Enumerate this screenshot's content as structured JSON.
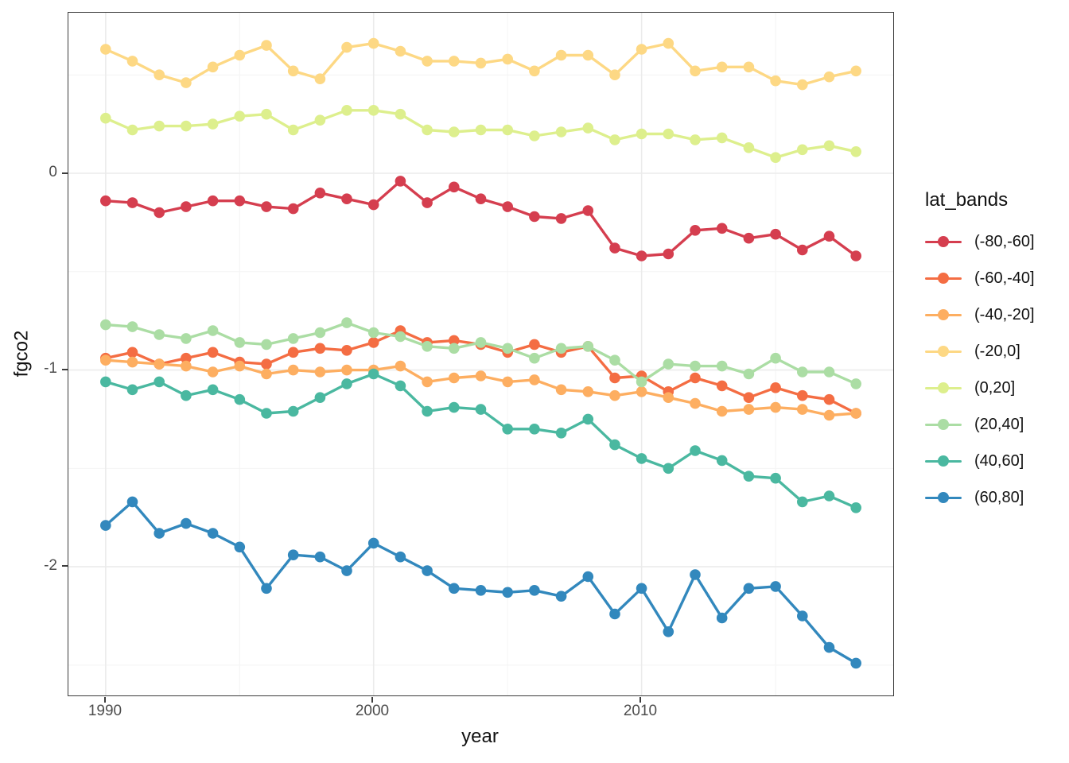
{
  "chart_data": {
    "type": "line",
    "xlabel": "year",
    "ylabel": "fgco2",
    "legend_title": "lat_bands",
    "legend_position": "right",
    "grid": true,
    "marker": "point",
    "x": [
      1990,
      1991,
      1992,
      1993,
      1994,
      1995,
      1996,
      1997,
      1998,
      1999,
      2000,
      2001,
      2002,
      2003,
      2004,
      2005,
      2006,
      2007,
      2008,
      2009,
      2010,
      2011,
      2012,
      2013,
      2014,
      2015,
      2016,
      2017,
      2018
    ],
    "x_major_ticks": [
      1990,
      2000,
      2010
    ],
    "x_minor_gridlines": [
      1995,
      2005,
      2015
    ],
    "y_major_ticks": [
      0,
      -1,
      -2
    ],
    "y_minor_gridlines": [
      0.5,
      -0.5,
      -1.5,
      -2.5
    ],
    "xlim": [
      1988.61,
      2019.39
    ],
    "ylim": [
      -2.654,
      0.816
    ],
    "series": [
      {
        "name": "(-80,-60]",
        "color": "#d53e4f",
        "values": [
          -0.14,
          -0.15,
          -0.2,
          -0.17,
          -0.14,
          -0.14,
          -0.17,
          -0.18,
          -0.1,
          -0.13,
          -0.16,
          -0.04,
          -0.15,
          -0.07,
          -0.13,
          -0.17,
          -0.22,
          -0.23,
          -0.19,
          -0.38,
          -0.42,
          -0.41,
          -0.29,
          -0.28,
          -0.33,
          -0.31,
          -0.39,
          -0.32,
          -0.42
        ]
      },
      {
        "name": "(-60,-40]",
        "color": "#f46d43",
        "values": [
          -0.94,
          -0.91,
          -0.97,
          -0.94,
          -0.91,
          -0.96,
          -0.97,
          -0.91,
          -0.89,
          -0.9,
          -0.86,
          -0.8,
          -0.86,
          -0.85,
          -0.87,
          -0.91,
          -0.87,
          -0.91,
          -0.88,
          -1.04,
          -1.03,
          -1.11,
          -1.04,
          -1.08,
          -1.14,
          -1.09,
          -1.13,
          -1.15,
          -1.22
        ]
      },
      {
        "name": "(-40,-20]",
        "color": "#fdae61",
        "values": [
          -0.95,
          -0.96,
          -0.97,
          -0.98,
          -1.01,
          -0.98,
          -1.02,
          -1.0,
          -1.01,
          -1.0,
          -1.0,
          -0.98,
          -1.06,
          -1.04,
          -1.03,
          -1.06,
          -1.05,
          -1.1,
          -1.11,
          -1.13,
          -1.11,
          -1.14,
          -1.17,
          -1.21,
          -1.2,
          -1.19,
          -1.2,
          -1.23,
          -1.22
        ]
      },
      {
        "name": "(-20,0]",
        "color": "#fdd884",
        "values": [
          0.63,
          0.57,
          0.5,
          0.46,
          0.54,
          0.6,
          0.65,
          0.52,
          0.48,
          0.64,
          0.66,
          0.62,
          0.57,
          0.57,
          0.56,
          0.58,
          0.52,
          0.6,
          0.6,
          0.5,
          0.63,
          0.66,
          0.52,
          0.54,
          0.54,
          0.47,
          0.45,
          0.49,
          0.52
        ]
      },
      {
        "name": "(0,20]",
        "color": "#ddef8d",
        "values": [
          0.28,
          0.22,
          0.24,
          0.24,
          0.25,
          0.29,
          0.3,
          0.22,
          0.27,
          0.32,
          0.32,
          0.3,
          0.22,
          0.21,
          0.22,
          0.22,
          0.19,
          0.21,
          0.23,
          0.17,
          0.2,
          0.2,
          0.17,
          0.18,
          0.13,
          0.08,
          0.12,
          0.14,
          0.11
        ]
      },
      {
        "name": "(20,40]",
        "color": "#abdda4",
        "values": [
          -0.77,
          -0.78,
          -0.82,
          -0.84,
          -0.8,
          -0.86,
          -0.87,
          -0.84,
          -0.81,
          -0.76,
          -0.81,
          -0.83,
          -0.88,
          -0.89,
          -0.86,
          -0.89,
          -0.94,
          -0.89,
          -0.88,
          -0.95,
          -1.06,
          -0.97,
          -0.98,
          -0.98,
          -1.02,
          -0.94,
          -1.01,
          -1.01,
          -1.07
        ]
      },
      {
        "name": "(40,60]",
        "color": "#4ab8a0",
        "values": [
          -1.06,
          -1.1,
          -1.06,
          -1.13,
          -1.1,
          -1.15,
          -1.22,
          -1.21,
          -1.14,
          -1.07,
          -1.02,
          -1.08,
          -1.21,
          -1.19,
          -1.2,
          -1.3,
          -1.3,
          -1.32,
          -1.25,
          -1.38,
          -1.45,
          -1.5,
          -1.41,
          -1.46,
          -1.54,
          -1.55,
          -1.67,
          -1.64,
          -1.7
        ]
      },
      {
        "name": "(60,80]",
        "color": "#3288bd",
        "values": [
          -1.79,
          -1.67,
          -1.83,
          -1.78,
          -1.83,
          -1.9,
          -2.11,
          -1.94,
          -1.95,
          -2.02,
          -1.88,
          -1.95,
          -2.02,
          -2.11,
          -2.12,
          -2.13,
          -2.12,
          -2.15,
          -2.05,
          -2.24,
          -2.11,
          -2.33,
          -2.04,
          -2.26,
          -2.11,
          -2.1,
          -2.25,
          -2.41,
          -2.49
        ]
      }
    ]
  },
  "axes": {
    "x_tick_labels": [
      "1990",
      "2000",
      "2010"
    ],
    "y_tick_labels": [
      "0",
      "-1",
      "-2"
    ]
  },
  "style": {
    "panel_border": "#3c3c3c",
    "grid_major": "#ebebeb",
    "grid_minor": "#f4f4f4",
    "tick_text": "#4d4d4d",
    "axis_title": "#111111"
  }
}
